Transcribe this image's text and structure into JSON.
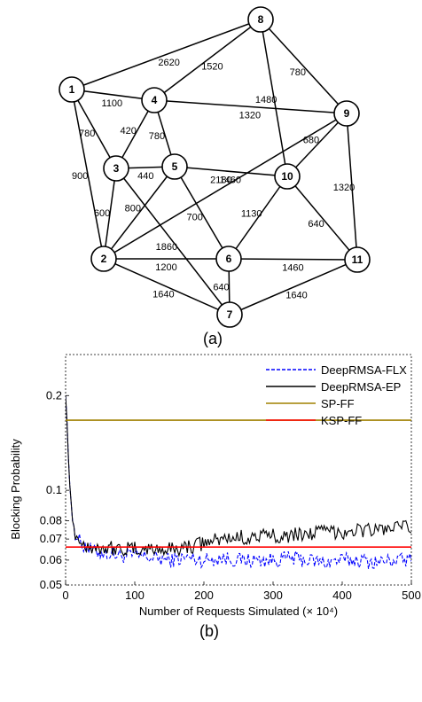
{
  "network": {
    "caption": "(a)",
    "nodes": [
      "1",
      "2",
      "3",
      "4",
      "5",
      "6",
      "7",
      "8",
      "9",
      "10",
      "11"
    ],
    "links": [
      {
        "a": "1",
        "b": "8",
        "w": "2620"
      },
      {
        "a": "1",
        "b": "4",
        "w": "1100"
      },
      {
        "a": "1",
        "b": "3",
        "w": "780"
      },
      {
        "a": "1",
        "b": "2",
        "w": "900"
      },
      {
        "a": "4",
        "b": "8",
        "w": "1520"
      },
      {
        "a": "4",
        "b": "9",
        "w": "1320"
      },
      {
        "a": "4",
        "b": "3",
        "w": "420"
      },
      {
        "a": "4",
        "b": "5",
        "w": "780"
      },
      {
        "a": "8",
        "b": "9",
        "w": "780"
      },
      {
        "a": "8",
        "b": "10",
        "w": "1480"
      },
      {
        "a": "9",
        "b": "2",
        "w": "2180"
      },
      {
        "a": "9",
        "b": "10",
        "w": "680"
      },
      {
        "a": "9",
        "b": "11",
        "w": "1320"
      },
      {
        "a": "3",
        "b": "5",
        "w": "440"
      },
      {
        "a": "3",
        "b": "2",
        "w": "600"
      },
      {
        "a": "3",
        "b": "7",
        "w": "1860"
      },
      {
        "a": "5",
        "b": "10",
        "w": "1460"
      },
      {
        "a": "5",
        "b": "2",
        "w": "800"
      },
      {
        "a": "5",
        "b": "6",
        "w": "700"
      },
      {
        "a": "10",
        "b": "6",
        "w": "1130"
      },
      {
        "a": "10",
        "b": "11",
        "w": "640"
      },
      {
        "a": "2",
        "b": "6",
        "w": "1200"
      },
      {
        "a": "2",
        "b": "7",
        "w": "1640"
      },
      {
        "a": "6",
        "b": "11",
        "w": "1460"
      },
      {
        "a": "6",
        "b": "7",
        "w": "640"
      },
      {
        "a": "7",
        "b": "11",
        "w": "1640"
      }
    ]
  },
  "chart_data": {
    "type": "line",
    "caption": "(b)",
    "xlabel": "Number of Requests Simulated (× 10⁴)",
    "ylabel": "Blocking Probability",
    "xlim": [
      0,
      500
    ],
    "ylim": [
      0.05,
      0.27
    ],
    "yscale": "log",
    "xticks": [
      0,
      100,
      200,
      300,
      400,
      500
    ],
    "yticks": [
      0.05,
      0.06,
      0.07,
      0.08,
      0.1,
      0.2
    ],
    "ytick_labels": [
      "0.05",
      "0.06",
      "0.07",
      "0.08",
      "0.1",
      "0.2"
    ],
    "legend_position": "top-right",
    "series": [
      {
        "name": "DeepRMSA-FLX",
        "color": "#0000ff",
        "style": "dashed",
        "x": [
          0,
          5,
          10,
          15,
          20,
          30,
          40,
          60,
          80,
          100,
          125,
          150,
          175,
          200,
          225,
          250,
          275,
          300,
          325,
          350,
          375,
          400,
          425,
          450,
          475,
          500
        ],
        "y": [
          0.2,
          0.11,
          0.08,
          0.072,
          0.069,
          0.066,
          0.064,
          0.063,
          0.062,
          0.062,
          0.061,
          0.06,
          0.061,
          0.06,
          0.061,
          0.06,
          0.06,
          0.06,
          0.061,
          0.06,
          0.059,
          0.06,
          0.06,
          0.059,
          0.06,
          0.06
        ]
      },
      {
        "name": "DeepRMSA-EP",
        "color": "#000000",
        "style": "solid",
        "x": [
          0,
          5,
          10,
          15,
          20,
          30,
          40,
          60,
          80,
          100,
          125,
          150,
          175,
          200,
          225,
          250,
          275,
          300,
          325,
          350,
          375,
          400,
          425,
          450,
          475,
          500
        ],
        "y": [
          0.2,
          0.11,
          0.08,
          0.072,
          0.069,
          0.067,
          0.066,
          0.066,
          0.065,
          0.065,
          0.065,
          0.065,
          0.066,
          0.068,
          0.07,
          0.071,
          0.071,
          0.072,
          0.072,
          0.073,
          0.074,
          0.074,
          0.075,
          0.075,
          0.076,
          0.076
        ]
      },
      {
        "name": "SP-FF",
        "color": "#a08000",
        "style": "solid",
        "x": [
          0,
          500
        ],
        "y": [
          0.167,
          0.167
        ]
      },
      {
        "name": "KSP-FF",
        "color": "#ff0000",
        "style": "solid",
        "x": [
          0,
          500
        ],
        "y": [
          0.066,
          0.066
        ]
      }
    ]
  }
}
